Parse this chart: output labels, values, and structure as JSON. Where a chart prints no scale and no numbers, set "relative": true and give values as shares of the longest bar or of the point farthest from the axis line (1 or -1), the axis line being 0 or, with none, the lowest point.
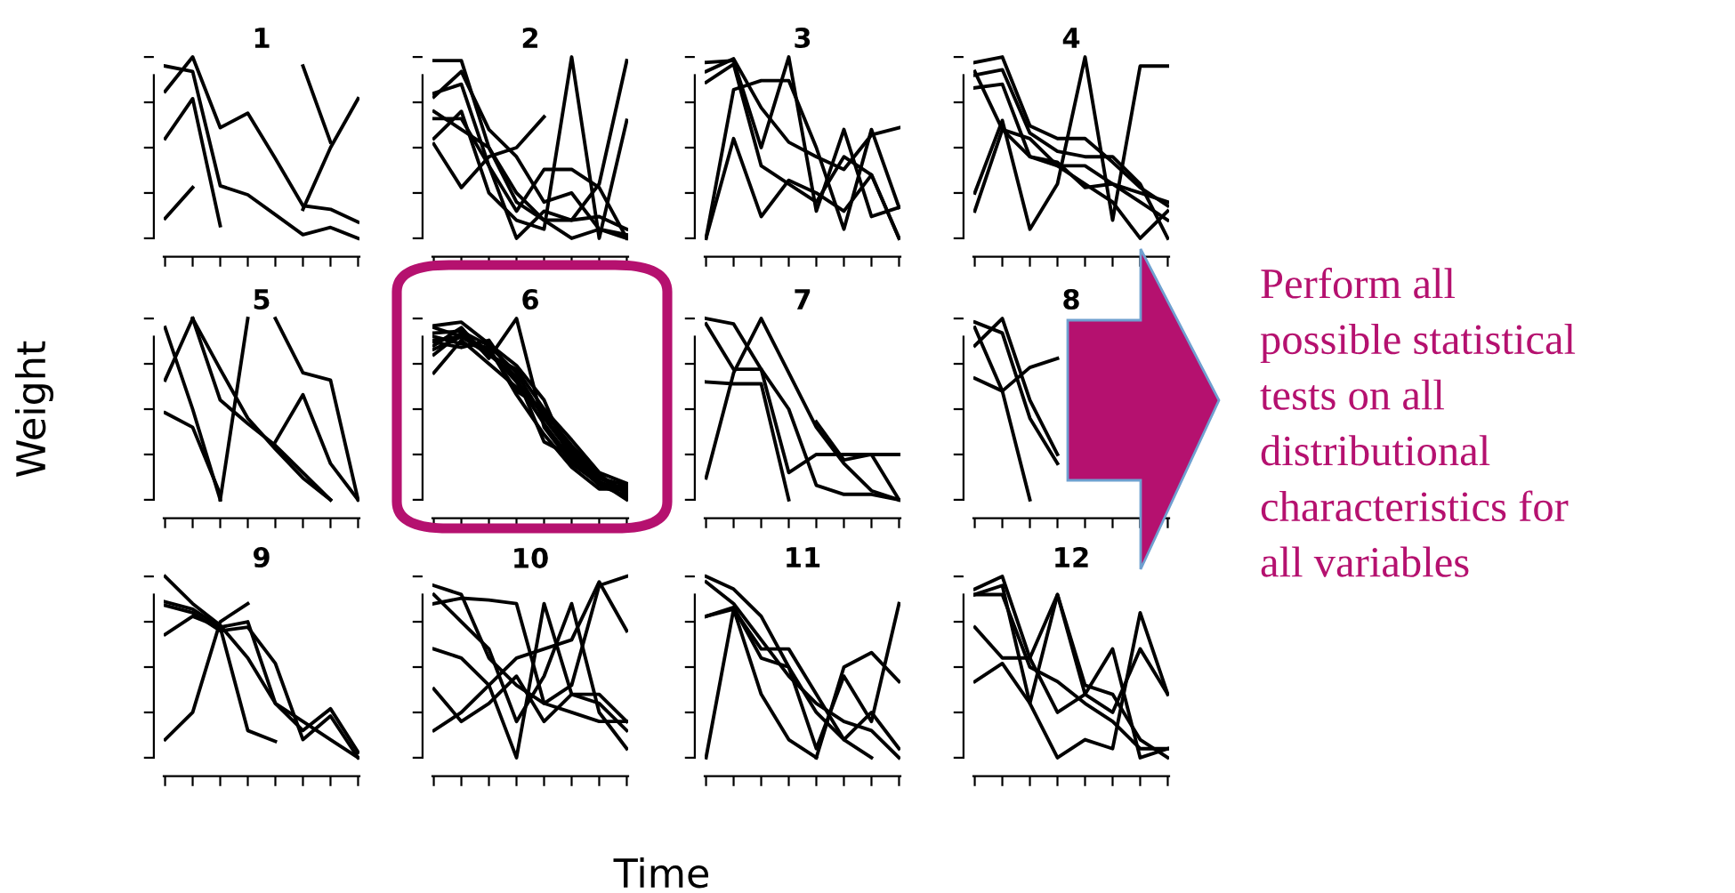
{
  "chart_data": [
    {
      "type": "line",
      "title": "1",
      "relative": true,
      "tick_labels": false,
      "color": "#000000",
      "categories": [
        null,
        null,
        null,
        null,
        null,
        null,
        null,
        null
      ],
      "series": [
        {
          "values": [
            0.81,
            1.0,
            0.61,
            0.69,
            0.44,
            0.18,
            0.16,
            0.09
          ]
        },
        {
          "values": [
            0.95,
            0.92,
            0.29,
            0.24,
            0.13,
            0.02,
            0.06,
            0.0
          ]
        },
        {
          "values": [
            0.55,
            0.77,
            0.07,
            null,
            null,
            null,
            null,
            null
          ]
        },
        {
          "values": [
            0.11,
            0.28,
            null,
            null,
            null,
            null,
            null,
            null
          ]
        },
        {
          "values": [
            null,
            null,
            null,
            null,
            null,
            0.95,
            0.53,
            null
          ]
        },
        {
          "values": [
            null,
            null,
            null,
            null,
            null,
            0.16,
            0.5,
            0.77
          ]
        }
      ]
    },
    {
      "type": "line",
      "title": "2",
      "relative": true,
      "tick_labels": false,
      "color": "#000000",
      "categories": [
        null,
        null,
        null,
        null,
        null,
        null,
        null,
        null
      ],
      "series": [
        {
          "values": [
            0.98,
            0.98,
            0.5,
            0.25,
            0.1,
            0.0,
            0.05,
            0.0
          ]
        },
        {
          "values": [
            0.78,
            0.92,
            0.6,
            0.45,
            0.2,
            0.25,
            0.05,
            0.02
          ]
        },
        {
          "values": [
            0.66,
            0.66,
            0.4,
            0.15,
            0.38,
            0.38,
            0.28,
            0.0
          ]
        },
        {
          "values": [
            0.52,
            0.28,
            0.45,
            0.5,
            0.67,
            null,
            null,
            null
          ]
        },
        {
          "values": [
            0.55,
            0.7,
            0.25,
            0.1,
            0.05,
            1.0,
            0.0,
            0.65
          ]
        },
        {
          "values": [
            0.8,
            0.85,
            0.4,
            0.0,
            0.15,
            0.1,
            0.3,
            0.98
          ]
        },
        {
          "values": [
            0.7,
            0.6,
            0.5,
            0.2,
            0.1,
            0.1,
            0.12,
            0.05
          ]
        }
      ]
    },
    {
      "type": "line",
      "title": "3",
      "relative": true,
      "tick_labels": false,
      "color": "#000000",
      "categories": [
        null,
        null,
        null,
        null,
        null,
        null,
        null,
        null
      ],
      "series": [
        {
          "values": [
            0.92,
            0.99,
            0.72,
            0.53,
            0.45,
            0.38,
            0.57,
            0.61
          ]
        },
        {
          "values": [
            0.86,
            0.96,
            0.4,
            0.3,
            0.2,
            0.45,
            0.35,
            0.0
          ]
        },
        {
          "values": [
            0.0,
            0.82,
            0.87,
            0.87,
            0.5,
            0.05,
            0.6,
            0.17
          ]
        },
        {
          "values": [
            0.97,
            0.98,
            0.5,
            1.0,
            0.15,
            0.6,
            0.12,
            0.17
          ]
        },
        {
          "values": [
            0.0,
            0.55,
            0.12,
            0.32,
            0.25,
            0.15,
            0.35,
            0.0
          ]
        }
      ]
    },
    {
      "type": "line",
      "title": "4",
      "relative": true,
      "tick_labels": false,
      "color": "#000000",
      "categories": [
        null,
        null,
        null,
        null,
        null,
        null,
        null,
        null
      ],
      "series": [
        {
          "values": [
            0.83,
            0.85,
            0.45,
            0.4,
            0.3,
            0.2,
            0.0,
            0.15
          ]
        },
        {
          "values": [
            0.92,
            0.6,
            0.45,
            0.42,
            0.28,
            0.3,
            0.25,
            0.2
          ]
        },
        {
          "values": [
            0.97,
            1.0,
            0.62,
            0.55,
            0.55,
            0.42,
            0.28,
            0.18
          ]
        },
        {
          "values": [
            0.25,
            0.65,
            0.05,
            0.3,
            1.0,
            0.1,
            0.95,
            0.95
          ]
        },
        {
          "values": [
            0.9,
            0.93,
            0.58,
            0.48,
            0.45,
            0.45,
            0.3,
            0.0
          ]
        },
        {
          "values": [
            0.15,
            0.6,
            0.55,
            0.4,
            0.4,
            0.3,
            0.2,
            0.1
          ]
        }
      ]
    },
    {
      "type": "line",
      "title": "5",
      "ylabel": "Weight",
      "relative": true,
      "tick_labels": false,
      "color": "#000000",
      "categories": [
        null,
        null,
        null,
        null,
        null,
        null,
        null,
        null
      ],
      "series": [
        {
          "values": [
            0.66,
            1.0,
            null,
            null,
            null,
            null,
            null,
            null
          ]
        },
        {
          "values": [
            0.48,
            0.4,
            0.03,
            null,
            null,
            null,
            null,
            null
          ]
        },
        {
          "values": [
            0.95,
            0.5,
            0.0,
            null,
            null,
            null,
            null,
            null
          ]
        },
        {
          "values": [
            null,
            1.0,
            0.72,
            0.45,
            0.28,
            0.12,
            0.0,
            null
          ]
        },
        {
          "values": [
            null,
            1.0,
            0.55,
            0.42,
            0.3,
            0.15,
            0.0,
            null
          ]
        },
        {
          "values": [
            null,
            null,
            0.0,
            1.0,
            null,
            null,
            null,
            null
          ]
        },
        {
          "values": [
            null,
            null,
            null,
            null,
            1.0,
            0.7,
            0.66,
            0.0
          ]
        },
        {
          "values": [
            null,
            null,
            null,
            null,
            0.32,
            0.58,
            0.2,
            0.0
          ]
        }
      ]
    },
    {
      "type": "line",
      "title": "6",
      "relative": true,
      "tick_labels": false,
      "color": "#000000",
      "categories": [
        null,
        null,
        null,
        null,
        null,
        null,
        null,
        null
      ],
      "series": [
        {
          "values": [
            0.92,
            0.93,
            0.85,
            0.7,
            0.45,
            0.25,
            0.1,
            0.0
          ]
        },
        {
          "values": [
            0.88,
            0.9,
            0.82,
            0.65,
            0.42,
            0.22,
            0.08,
            0.02
          ]
        },
        {
          "values": [
            0.95,
            0.9,
            0.8,
            0.72,
            0.5,
            0.28,
            0.12,
            0.05
          ]
        },
        {
          "values": [
            0.85,
            0.95,
            0.78,
            1.0,
            0.4,
            0.2,
            0.1,
            0.01
          ]
        },
        {
          "values": [
            0.7,
            0.88,
            0.75,
            0.62,
            0.48,
            0.3,
            0.14,
            0.03
          ]
        },
        {
          "values": [
            0.9,
            0.86,
            0.84,
            0.58,
            0.36,
            0.18,
            0.06,
            0.06
          ]
        },
        {
          "values": [
            0.8,
            0.92,
            0.8,
            0.68,
            0.32,
            0.24,
            0.1,
            0.04
          ]
        },
        {
          "values": [
            0.96,
            0.98,
            0.86,
            0.74,
            0.55,
            0.2,
            0.09,
            0.07
          ]
        },
        {
          "values": [
            0.87,
            0.84,
            0.88,
            0.66,
            0.46,
            0.26,
            0.12,
            0.08
          ]
        },
        {
          "values": [
            0.83,
            0.9,
            0.83,
            0.6,
            0.5,
            0.33,
            0.15,
            0.09
          ]
        }
      ]
    },
    {
      "type": "line",
      "title": "7",
      "relative": true,
      "tick_labels": false,
      "color": "#000000",
      "categories": [
        null,
        null,
        null,
        null,
        null,
        null,
        null,
        null
      ],
      "series": [
        {
          "values": [
            1.0,
            0.97,
            0.72,
            0.5,
            0.08,
            0.03,
            0.03,
            0.0
          ]
        },
        {
          "values": [
            0.97,
            0.72,
            0.72,
            0.15,
            0.25,
            0.25,
            0.25,
            0.25
          ]
        },
        {
          "values": [
            0.65,
            0.64,
            0.64,
            0.0,
            null,
            null,
            null,
            null
          ]
        },
        {
          "values": [
            0.12,
            0.7,
            1.0,
            0.7,
            0.4,
            0.2,
            0.05,
            0.0
          ]
        },
        {
          "values": [
            null,
            null,
            null,
            null,
            0.43,
            0.22,
            0.25,
            0.0
          ]
        }
      ]
    },
    {
      "type": "line",
      "title": "8",
      "annotations": [
        "Perform all\npossible statistical\ntests on all\ndistributional\ncharacteristics for\nall variables"
      ],
      "relative": true,
      "tick_labels": false,
      "color": "#000000",
      "categories": [
        null,
        null,
        null,
        null,
        null,
        null,
        null,
        null
      ],
      "series": [
        {
          "values": [
            0.98,
            0.92,
            0.45,
            0.2,
            null,
            null,
            null,
            null
          ]
        },
        {
          "values": [
            0.85,
            1.0,
            0.55,
            0.25,
            null,
            null,
            null,
            null
          ]
        },
        {
          "values": [
            0.67,
            0.6,
            0.73,
            0.78,
            null,
            null,
            null,
            null
          ]
        },
        {
          "values": [
            0.95,
            0.6,
            0.0,
            null,
            null,
            null,
            null,
            null
          ]
        }
      ]
    },
    {
      "type": "line",
      "title": "9",
      "relative": true,
      "tick_labels": false,
      "color": "#000000",
      "categories": [
        null,
        null,
        null,
        null,
        null,
        null,
        null,
        null
      ],
      "series": [
        {
          "values": [
            1.0,
            0.85,
            0.73,
            0.55,
            0.3,
            0.2,
            0.1,
            0.0
          ]
        },
        {
          "values": [
            0.84,
            0.8,
            0.7,
            0.72,
            0.52,
            0.1,
            0.23,
            0.0
          ]
        },
        {
          "values": [
            0.68,
            0.78,
            0.72,
            0.75,
            0.3,
            0.15,
            0.27,
            0.03
          ]
        },
        {
          "values": [
            0.1,
            0.25,
            0.75,
            0.85,
            null,
            null,
            null,
            null
          ]
        },
        {
          "values": [
            0.86,
            0.82,
            0.72,
            0.15,
            0.09,
            null,
            null,
            null
          ]
        }
      ]
    },
    {
      "type": "line",
      "title": "10",
      "xlabel": "Time",
      "relative": true,
      "tick_labels": false,
      "color": "#000000",
      "categories": [
        null,
        null,
        null,
        null,
        null,
        null,
        null,
        null
      ],
      "series": [
        {
          "values": [
            0.95,
            0.9,
            0.55,
            0.4,
            0.3,
            0.25,
            0.2,
            0.2
          ]
        },
        {
          "values": [
            0.85,
            0.88,
            0.87,
            0.85,
            0.3,
            0.4,
            0.95,
            1.0
          ]
        },
        {
          "values": [
            0.6,
            0.55,
            0.4,
            0.0,
            0.85,
            0.35,
            0.3,
            0.15
          ]
        },
        {
          "values": [
            0.15,
            0.25,
            0.4,
            0.55,
            0.6,
            0.65,
            0.97,
            0.7
          ]
        },
        {
          "values": [
            0.38,
            0.2,
            0.3,
            0.45,
            0.2,
            0.35,
            0.35,
            0.2
          ]
        },
        {
          "values": [
            0.9,
            0.75,
            0.6,
            0.2,
            0.45,
            0.85,
            0.25,
            0.05
          ]
        }
      ]
    },
    {
      "type": "line",
      "title": "11",
      "relative": true,
      "tick_labels": false,
      "color": "#000000",
      "categories": [
        null,
        null,
        null,
        null,
        null,
        null,
        null,
        null
      ],
      "series": [
        {
          "values": [
            1.0,
            0.93,
            0.78,
            0.5,
            0.25,
            0.1,
            0.0,
            null
          ]
        },
        {
          "values": [
            0.78,
            0.83,
            0.55,
            0.5,
            0.05,
            0.45,
            0.2,
            0.85
          ]
        },
        {
          "values": [
            0.78,
            0.82,
            0.35,
            0.1,
            0.0,
            null,
            null,
            null
          ]
        },
        {
          "values": [
            0.0,
            0.82,
            0.6,
            0.6,
            0.35,
            0.1,
            0.25,
            0.05
          ]
        },
        {
          "values": [
            0.97,
            0.85,
            0.65,
            0.45,
            0.3,
            0.2,
            0.15,
            0.0
          ]
        },
        {
          "values": [
            null,
            null,
            null,
            null,
            0.0,
            0.5,
            0.58,
            0.42
          ]
        }
      ]
    },
    {
      "type": "line",
      "title": "12",
      "relative": true,
      "tick_labels": false,
      "color": "#000000",
      "categories": [
        null,
        null,
        null,
        null,
        null,
        null,
        null,
        null
      ],
      "series": [
        {
          "values": [
            0.93,
            1.0,
            0.55,
            0.25,
            0.35,
            0.25,
            0.6,
            0.35
          ]
        },
        {
          "values": [
            0.72,
            0.55,
            0.55,
            0.9,
            0.35,
            0.6,
            0.0,
            0.05
          ]
        },
        {
          "values": [
            0.42,
            0.52,
            0.3,
            0.0,
            0.1,
            0.05,
            0.8,
            0.35
          ]
        },
        {
          "values": [
            0.9,
            0.9,
            0.5,
            0.42,
            0.3,
            0.2,
            0.05,
            0.05
          ]
        },
        {
          "values": [
            0.9,
            0.95,
            0.3,
            0.9,
            0.4,
            0.35,
            0.1,
            0.0
          ]
        }
      ]
    }
  ]
}
